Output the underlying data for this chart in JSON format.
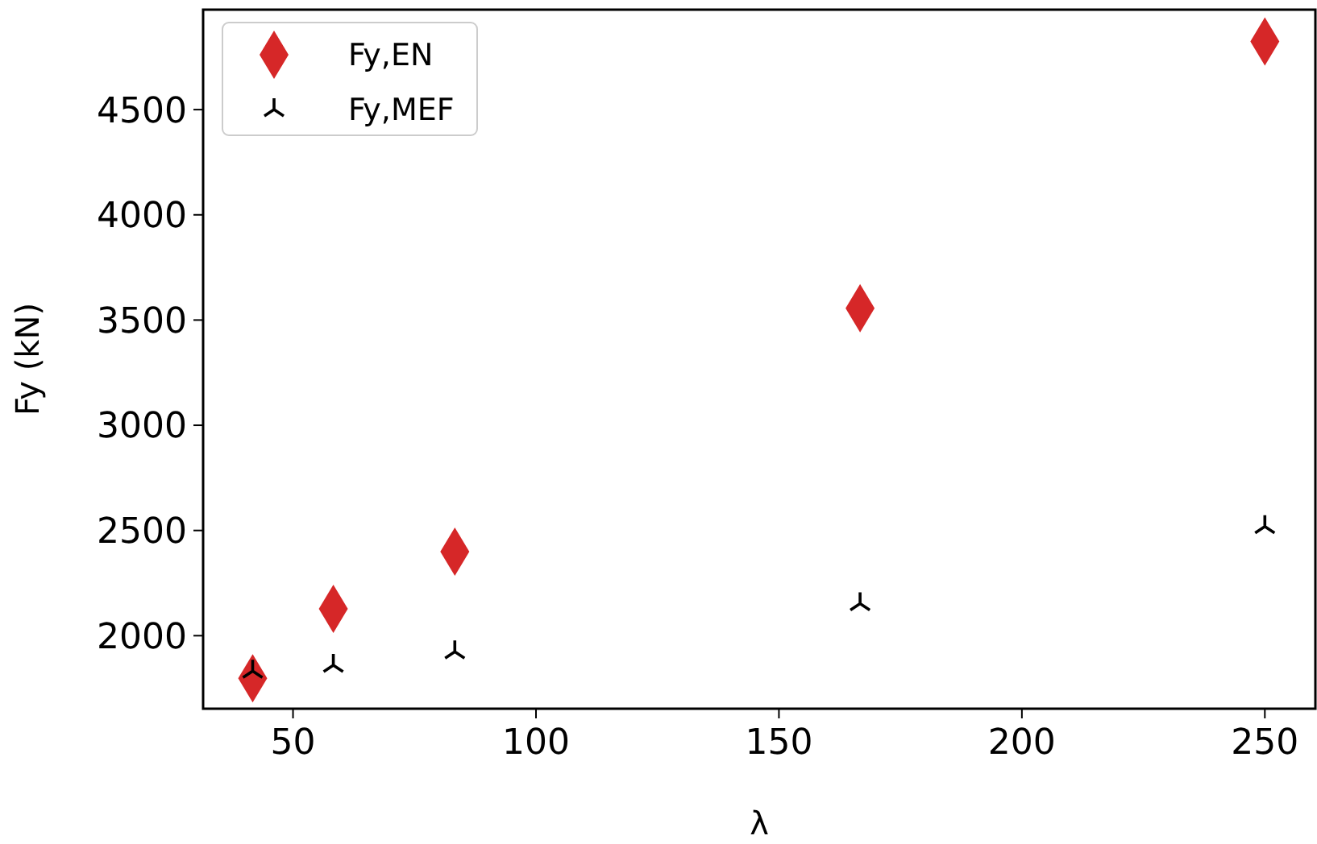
{
  "chart_data": {
    "type": "scatter",
    "xlabel": "λ",
    "ylabel": "Fy (kN)",
    "x": [
      41.7,
      58.3,
      83.3,
      166.7,
      250
    ],
    "series": [
      {
        "name": "Fy,EN",
        "color": "#d62728",
        "marker": "diamond",
        "values": [
          1797,
          2128,
          2399,
          3556,
          4824
        ]
      },
      {
        "name": "Fy,MEF",
        "color": "#000000",
        "marker": "cross",
        "values": [
          1832,
          1860,
          1924,
          2152,
          2519
        ]
      }
    ],
    "xlim": [
      31.5,
      260.4
    ],
    "xticks": [
      50,
      100,
      150,
      200,
      250
    ],
    "ylim": [
      1653,
      4975
    ],
    "yticks": [
      2000,
      2500,
      3000,
      3500,
      4000,
      4500
    ],
    "grid": false,
    "legend": "top left"
  }
}
